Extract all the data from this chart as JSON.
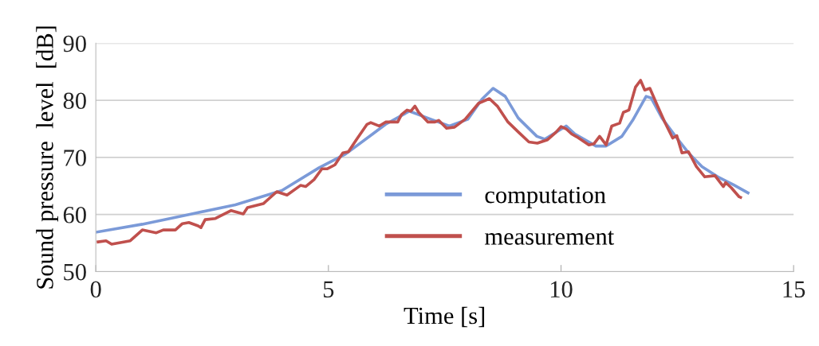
{
  "chart_data": {
    "type": "line",
    "xlabel": "Time [s]",
    "ylabel": "Sound pressure  level  [dB]",
    "xlim": [
      0,
      15
    ],
    "xticks": [
      0,
      5,
      10,
      15
    ],
    "ylim": [
      50,
      90
    ],
    "yticks": [
      50,
      60,
      70,
      80,
      90
    ],
    "grid": "y",
    "legend": "bottom",
    "marker": "none",
    "line_style": "solid",
    "series": [
      {
        "name": "computation",
        "color": "#7b9ad8",
        "x": [
          0,
          1,
          2,
          3,
          4,
          4.8,
          5.37,
          5.95,
          6.23,
          6.74,
          7.2,
          7.6,
          8.0,
          8.3,
          8.54,
          8.8,
          9.08,
          9.48,
          9.65,
          10.11,
          10.3,
          10.75,
          10.97,
          11.31,
          11.54,
          11.83,
          11.94,
          12.17,
          12.46,
          12.74,
          13.03,
          13.37,
          13.71,
          14.02
        ],
        "values": [
          56.9,
          58.3,
          60.0,
          61.7,
          64.2,
          68.2,
          70.6,
          74.1,
          75.8,
          78.1,
          76.7,
          75.5,
          76.7,
          80.2,
          82.1,
          80.7,
          76.9,
          73.7,
          73.2,
          75.5,
          74.1,
          72.0,
          72.0,
          73.7,
          76.5,
          80.7,
          80.4,
          76.9,
          73.7,
          70.8,
          68.4,
          66.6,
          65.2,
          63.8
        ]
      },
      {
        "name": "measurement",
        "color": "#c0504d",
        "x": [
          0.05,
          0.22,
          0.34,
          0.74,
          1.0,
          1.3,
          1.45,
          1.71,
          1.86,
          2.0,
          2.2,
          2.26,
          2.35,
          2.57,
          2.91,
          3.17,
          3.26,
          3.6,
          3.89,
          4.11,
          4.4,
          4.51,
          4.69,
          4.86,
          4.97,
          5.14,
          5.31,
          5.43,
          5.6,
          5.83,
          5.91,
          6.09,
          6.23,
          6.49,
          6.57,
          6.69,
          6.77,
          6.86,
          6.94,
          7.14,
          7.29,
          7.37,
          7.54,
          7.71,
          7.94,
          8.23,
          8.46,
          8.63,
          8.86,
          9.09,
          9.31,
          9.49,
          9.71,
          9.89,
          10.0,
          10.11,
          10.23,
          10.34,
          10.6,
          10.71,
          10.83,
          10.97,
          11.09,
          11.26,
          11.34,
          11.46,
          11.6,
          11.71,
          11.8,
          11.91,
          12.06,
          12.23,
          12.4,
          12.49,
          12.6,
          12.74,
          12.91,
          13.09,
          13.31,
          13.49,
          13.54,
          13.66,
          13.83,
          13.86
        ],
        "values": [
          55.2,
          55.4,
          54.8,
          55.4,
          57.3,
          56.8,
          57.3,
          57.3,
          58.4,
          58.6,
          58.0,
          57.7,
          59.1,
          59.3,
          60.7,
          60.1,
          61.2,
          61.9,
          64.0,
          63.4,
          65.1,
          64.9,
          66.1,
          68.0,
          68.0,
          68.7,
          70.8,
          71.0,
          73.1,
          75.8,
          76.1,
          75.5,
          76.2,
          76.2,
          77.5,
          78.3,
          78.1,
          79.0,
          77.9,
          76.2,
          76.2,
          76.5,
          75.1,
          75.3,
          76.7,
          79.5,
          80.3,
          79.0,
          76.2,
          74.4,
          72.7,
          72.5,
          73.1,
          74.4,
          75.4,
          75.0,
          74.1,
          73.6,
          72.2,
          72.4,
          73.7,
          72.2,
          75.5,
          76.0,
          77.9,
          78.3,
          82.3,
          83.5,
          81.8,
          82.1,
          79.3,
          76.2,
          73.4,
          73.8,
          70.8,
          71.0,
          68.4,
          66.6,
          66.8,
          64.9,
          65.6,
          64.7,
          63.1,
          63.0
        ]
      }
    ]
  }
}
